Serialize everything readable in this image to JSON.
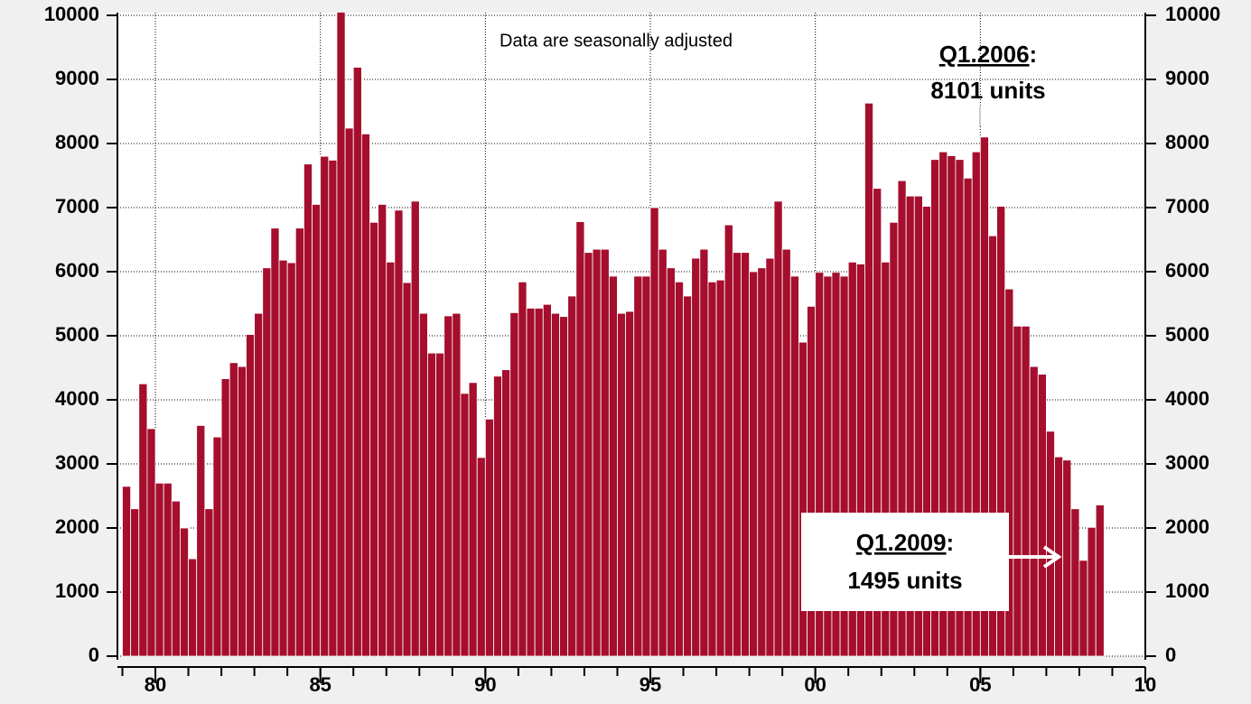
{
  "chart_data": {
    "type": "bar",
    "color": "#a50e2d",
    "annotations": [
      {
        "text": "Data are seasonally adjusted"
      },
      {
        "label": "Q1.2006",
        "punct": ":",
        "text": "8101 units"
      },
      {
        "label": "Q1.2009",
        "punct": ":",
        "text": "1495 units"
      }
    ],
    "categories": [
      null,
      null,
      null,
      null,
      null,
      null,
      null,
      null,
      null,
      null,
      null,
      null,
      null,
      null,
      null,
      null,
      null,
      null,
      null,
      null,
      null,
      null,
      null,
      null,
      null,
      null,
      null,
      null,
      null,
      null,
      null,
      null,
      null,
      null,
      null,
      null,
      null,
      null,
      null,
      null,
      null,
      null,
      null,
      null,
      null,
      null,
      null,
      null,
      null,
      null,
      null,
      null,
      null,
      null,
      null,
      null,
      null,
      null,
      null,
      null,
      null,
      null,
      null,
      null,
      null,
      null,
      null,
      null,
      null,
      null,
      null,
      null,
      null,
      null,
      null,
      null,
      null,
      null,
      null,
      null,
      null,
      null,
      null,
      null,
      null,
      null,
      null,
      null,
      null,
      null,
      null,
      null,
      null,
      null,
      null,
      null,
      null,
      null,
      null,
      null,
      null,
      null,
      null,
      null,
      null,
      null,
      null,
      null,
      null,
      null,
      null,
      null,
      null,
      null,
      null,
      null,
      null,
      null,
      null
    ],
    "values": [
      2650,
      2300,
      4250,
      3550,
      2700,
      2700,
      2420,
      2000,
      1520,
      3600,
      2300,
      3420,
      4330,
      4580,
      4520,
      5020,
      5350,
      6060,
      6680,
      6180,
      6140,
      6680,
      7680,
      7050,
      7800,
      7740,
      10050,
      8240,
      9190,
      8150,
      6770,
      7050,
      6150,
      6960,
      5830,
      7100,
      5350,
      4730,
      4730,
      5310,
      5350,
      4100,
      4270,
      3100,
      3700,
      4370,
      4470,
      5360,
      5840,
      5430,
      5430,
      5490,
      5350,
      5300,
      5620,
      6780,
      6300,
      6350,
      6350,
      5930,
      5350,
      5380,
      5930,
      5930,
      7000,
      6350,
      6060,
      5840,
      5620,
      6210,
      6350,
      5840,
      5870,
      6730,
      6300,
      6300,
      6000,
      6060,
      6210,
      7100,
      6350,
      5930,
      4900,
      5460,
      5990,
      5930,
      5990,
      5930,
      6150,
      6120,
      8630,
      7300,
      6150,
      6770,
      7420,
      7180,
      7180,
      7020,
      7750,
      7870,
      7810,
      7750,
      7460,
      7870,
      8101,
      6560,
      7020,
      5730,
      5150,
      5150,
      4520,
      4400,
      3510,
      3110,
      3060,
      2300,
      1495,
      2010,
      2360
    ],
    "xlim": [
      1979,
      2010
    ],
    "xticks": [
      {
        "value": 1980,
        "label": "80"
      },
      {
        "value": 1985,
        "label": "85"
      },
      {
        "value": 1990,
        "label": "90"
      },
      {
        "value": 1995,
        "label": "95"
      },
      {
        "value": 2000,
        "label": "00"
      },
      {
        "value": 2005,
        "label": "05"
      },
      {
        "value": 2010,
        "label": "10"
      }
    ],
    "ylim": [
      0,
      10000
    ],
    "yticks": [
      0,
      1000,
      2000,
      3000,
      4000,
      5000,
      6000,
      7000,
      8000,
      9000,
      10000
    ],
    "grid": true
  }
}
